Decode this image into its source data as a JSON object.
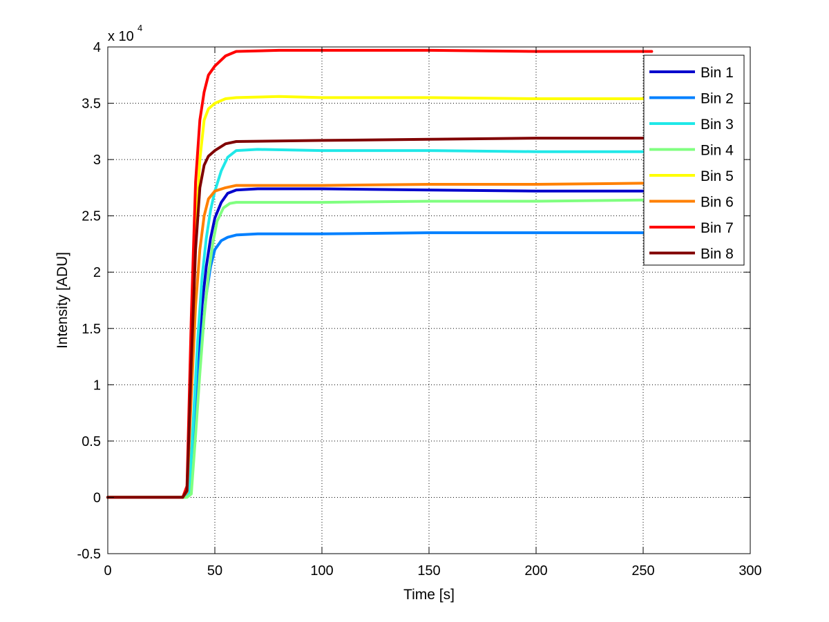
{
  "chart_data": {
    "type": "line",
    "title": "",
    "xlabel": "Time [s]",
    "ylabel": "Intensity [ADU]",
    "xlim": [
      0,
      300
    ],
    "ylim": [
      -0.5,
      4
    ],
    "x_ticks": [
      0,
      50,
      100,
      150,
      200,
      250,
      300
    ],
    "y_ticks": [
      -0.5,
      0,
      0.5,
      1,
      1.5,
      2,
      2.5,
      3,
      3.5,
      4
    ],
    "x_tick_labels": [
      "0",
      "50",
      "100",
      "150",
      "200",
      "250",
      "300"
    ],
    "y_tick_labels": [
      "-0.5",
      "0",
      "0.5",
      "1",
      "1.5",
      "2",
      "2.5",
      "3",
      "3.5",
      "4"
    ],
    "y_multiplier": {
      "base": "x 10",
      "exponent": "4"
    },
    "grid": true,
    "legend_position": "top-right",
    "series": [
      {
        "name": "Bin 1",
        "color": "#0000cc",
        "points": [
          [
            0,
            0
          ],
          [
            36,
            0
          ],
          [
            38,
            0.03
          ],
          [
            40,
            0.6
          ],
          [
            42,
            1.2
          ],
          [
            44,
            1.7
          ],
          [
            46,
            2.05
          ],
          [
            48,
            2.3
          ],
          [
            50,
            2.48
          ],
          [
            53,
            2.62
          ],
          [
            56,
            2.7
          ],
          [
            60,
            2.73
          ],
          [
            70,
            2.74
          ],
          [
            100,
            2.74
          ],
          [
            150,
            2.73
          ],
          [
            200,
            2.72
          ],
          [
            250,
            2.72
          ]
        ]
      },
      {
        "name": "Bin 2",
        "color": "#0080ff",
        "points": [
          [
            0,
            0
          ],
          [
            36,
            0
          ],
          [
            38,
            0.02
          ],
          [
            40,
            0.5
          ],
          [
            42,
            1.0
          ],
          [
            44,
            1.45
          ],
          [
            46,
            1.8
          ],
          [
            48,
            2.05
          ],
          [
            50,
            2.2
          ],
          [
            53,
            2.28
          ],
          [
            56,
            2.31
          ],
          [
            60,
            2.33
          ],
          [
            70,
            2.34
          ],
          [
            100,
            2.34
          ],
          [
            150,
            2.35
          ],
          [
            200,
            2.35
          ],
          [
            250,
            2.35
          ]
        ]
      },
      {
        "name": "Bin 3",
        "color": "#20e8e8",
        "points": [
          [
            0,
            0
          ],
          [
            36,
            0
          ],
          [
            38,
            0.04
          ],
          [
            40,
            0.7
          ],
          [
            42,
            1.4
          ],
          [
            44,
            1.95
          ],
          [
            46,
            2.3
          ],
          [
            48,
            2.55
          ],
          [
            50,
            2.72
          ],
          [
            53,
            2.9
          ],
          [
            56,
            3.02
          ],
          [
            60,
            3.08
          ],
          [
            70,
            3.09
          ],
          [
            100,
            3.08
          ],
          [
            150,
            3.08
          ],
          [
            200,
            3.07
          ],
          [
            250,
            3.07
          ]
        ]
      },
      {
        "name": "Bin 4",
        "color": "#80ff80",
        "points": [
          [
            0,
            0
          ],
          [
            37,
            0
          ],
          [
            39,
            0.03
          ],
          [
            41,
            0.55
          ],
          [
            43,
            1.1
          ],
          [
            45,
            1.6
          ],
          [
            47,
            1.98
          ],
          [
            49,
            2.25
          ],
          [
            51,
            2.45
          ],
          [
            54,
            2.57
          ],
          [
            57,
            2.61
          ],
          [
            60,
            2.62
          ],
          [
            70,
            2.62
          ],
          [
            100,
            2.62
          ],
          [
            150,
            2.63
          ],
          [
            200,
            2.63
          ],
          [
            250,
            2.64
          ]
        ]
      },
      {
        "name": "Bin 5",
        "color": "#ffff00",
        "points": [
          [
            0,
            0
          ],
          [
            35,
            0
          ],
          [
            37,
            0.08
          ],
          [
            39,
            1.2
          ],
          [
            41,
            2.3
          ],
          [
            43,
            3.0
          ],
          [
            45,
            3.35
          ],
          [
            47,
            3.45
          ],
          [
            50,
            3.5
          ],
          [
            55,
            3.54
          ],
          [
            60,
            3.55
          ],
          [
            80,
            3.56
          ],
          [
            100,
            3.55
          ],
          [
            150,
            3.55
          ],
          [
            200,
            3.54
          ],
          [
            250,
            3.54
          ]
        ]
      },
      {
        "name": "Bin 6",
        "color": "#ff8000",
        "points": [
          [
            0,
            0
          ],
          [
            35,
            0
          ],
          [
            37,
            0.05
          ],
          [
            39,
            0.9
          ],
          [
            41,
            1.7
          ],
          [
            43,
            2.2
          ],
          [
            45,
            2.5
          ],
          [
            47,
            2.65
          ],
          [
            50,
            2.72
          ],
          [
            55,
            2.75
          ],
          [
            60,
            2.77
          ],
          [
            100,
            2.77
          ],
          [
            150,
            2.78
          ],
          [
            200,
            2.78
          ],
          [
            250,
            2.79
          ]
        ]
      },
      {
        "name": "Bin 7",
        "color": "#ff0000",
        "points": [
          [
            0,
            0
          ],
          [
            35,
            0
          ],
          [
            37,
            0.1
          ],
          [
            39,
            1.6
          ],
          [
            41,
            2.8
          ],
          [
            43,
            3.35
          ],
          [
            45,
            3.6
          ],
          [
            47,
            3.75
          ],
          [
            50,
            3.83
          ],
          [
            55,
            3.92
          ],
          [
            60,
            3.96
          ],
          [
            80,
            3.97
          ],
          [
            100,
            3.97
          ],
          [
            150,
            3.97
          ],
          [
            200,
            3.96
          ],
          [
            250,
            3.96
          ],
          [
            254,
            3.96
          ]
        ]
      },
      {
        "name": "Bin 8",
        "color": "#800000",
        "points": [
          [
            0,
            0
          ],
          [
            35,
            0
          ],
          [
            37,
            0.06
          ],
          [
            39,
            1.2
          ],
          [
            41,
            2.2
          ],
          [
            43,
            2.75
          ],
          [
            45,
            2.95
          ],
          [
            47,
            3.03
          ],
          [
            50,
            3.08
          ],
          [
            55,
            3.14
          ],
          [
            60,
            3.16
          ],
          [
            100,
            3.17
          ],
          [
            150,
            3.18
          ],
          [
            200,
            3.19
          ],
          [
            250,
            3.19
          ]
        ]
      }
    ]
  }
}
